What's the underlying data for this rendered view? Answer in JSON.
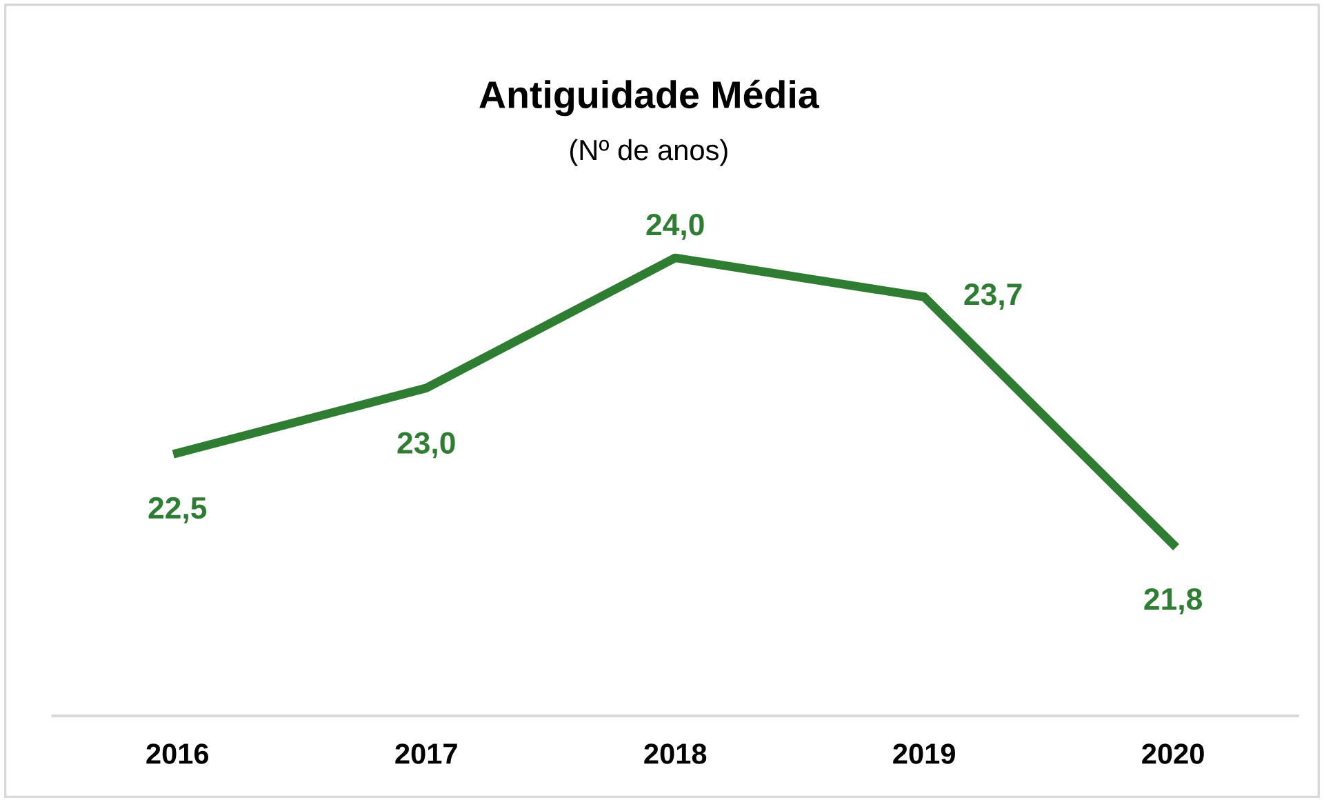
{
  "chart_data": {
    "type": "line",
    "title": "Antiguidade Média",
    "subtitle": "(Nº de anos)",
    "categories": [
      "2016",
      "2017",
      "2018",
      "2019",
      "2020"
    ],
    "series": [
      {
        "color": "#2e7d32",
        "values": [
          22.5,
          23.0,
          24.0,
          23.7,
          21.8
        ],
        "value_labels": [
          "22,5",
          "23,0",
          "24,0",
          "23,7",
          "21,8"
        ]
      }
    ],
    "marker": "none",
    "line_style": "solid",
    "grid": false,
    "legend": false,
    "tick_labels": "x"
  }
}
